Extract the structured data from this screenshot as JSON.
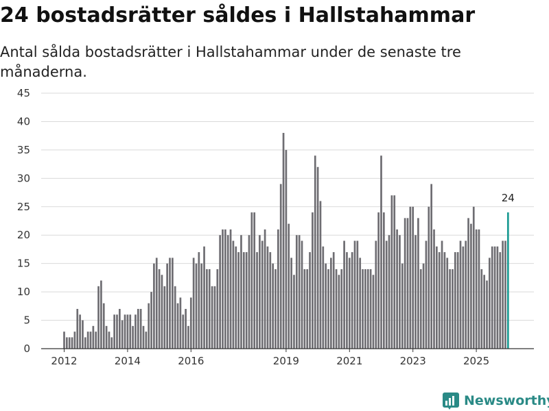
{
  "header": {
    "title": "24 bostadsrätter såldes i Hallstahammar",
    "subtitle": "Antal sålda bostadsrätter i Hallstahammar under de senaste tre månaderna."
  },
  "brand": {
    "name": "Newsworthy",
    "color": "#2a8a86"
  },
  "colors": {
    "bar": "#6e6d72",
    "highlight": "#1a9a92",
    "grid": "#d9d9d9",
    "axis": "#333333"
  },
  "chart_data": {
    "type": "bar",
    "title": "24 bostadsrätter såldes i Hallstahammar",
    "xlabel": "",
    "ylabel": "",
    "ylim": [
      0,
      45
    ],
    "yticks": [
      0,
      5,
      10,
      15,
      20,
      25,
      30,
      35,
      40,
      45
    ],
    "start": "2012-01",
    "x_tick_labels": [
      {
        "label": "2012",
        "month_index": 0
      },
      {
        "label": "2014",
        "month_index": 24
      },
      {
        "label": "2016",
        "month_index": 48
      },
      {
        "label": "2019",
        "month_index": 84
      },
      {
        "label": "2021",
        "month_index": 108
      },
      {
        "label": "2023",
        "month_index": 132
      },
      {
        "label": "2025",
        "month_index": 156
      }
    ],
    "values": [
      3,
      2,
      2,
      2,
      3,
      7,
      6,
      5,
      2,
      3,
      3,
      4,
      3,
      11,
      12,
      8,
      4,
      3,
      2,
      6,
      6,
      7,
      5,
      6,
      6,
      6,
      4,
      6,
      7,
      7,
      4,
      3,
      8,
      10,
      15,
      16,
      14,
      13,
      11,
      15,
      16,
      16,
      11,
      8,
      9,
      6,
      7,
      4,
      9,
      16,
      15,
      17,
      15,
      18,
      14,
      14,
      11,
      11,
      14,
      20,
      21,
      21,
      20,
      21,
      19,
      18,
      17,
      20,
      17,
      17,
      20,
      24,
      24,
      17,
      20,
      19,
      21,
      18,
      17,
      15,
      14,
      21,
      29,
      38,
      35,
      22,
      16,
      13,
      20,
      20,
      19,
      14,
      14,
      17,
      24,
      34,
      32,
      26,
      18,
      15,
      14,
      16,
      17,
      14,
      13,
      14,
      19,
      17,
      16,
      17,
      19,
      19,
      16,
      14,
      14,
      14,
      14,
      13,
      19,
      24,
      34,
      24,
      19,
      20,
      27,
      27,
      21,
      20,
      15,
      23,
      23,
      25,
      25,
      20,
      23,
      14,
      15,
      19,
      25,
      29,
      21,
      18,
      17,
      19,
      17,
      16,
      14,
      14,
      17,
      17,
      19,
      18,
      19,
      23,
      22,
      25,
      21,
      21,
      14,
      13,
      12,
      16,
      18,
      18,
      18,
      17,
      19,
      19,
      24
    ],
    "highlight_last": true,
    "annotations": [
      {
        "text": "24",
        "target": "last"
      }
    ]
  }
}
